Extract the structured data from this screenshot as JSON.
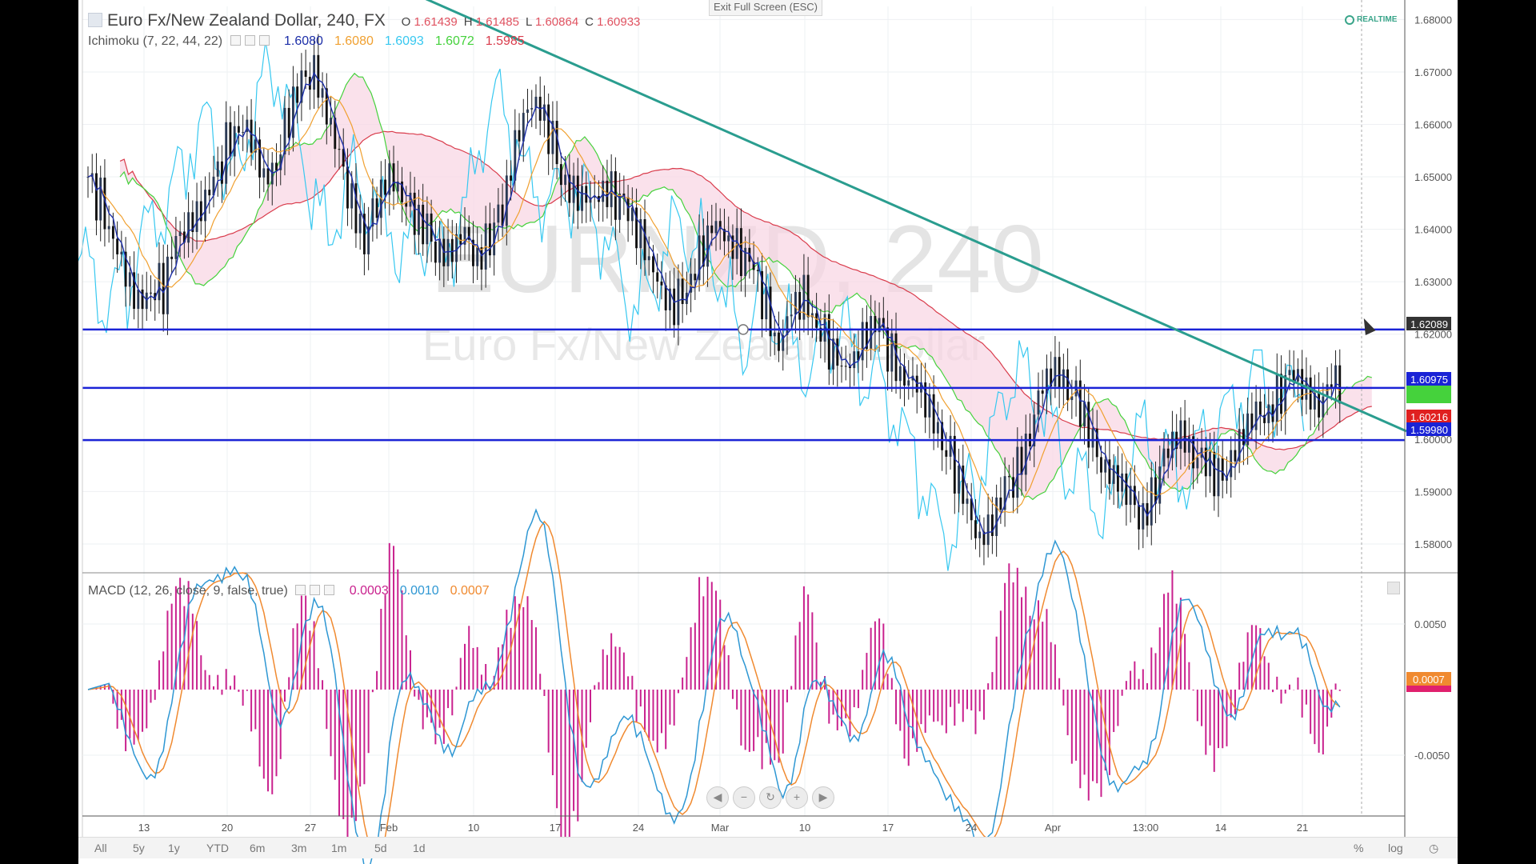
{
  "app": {
    "exit_fullscreen_label": "Exit Full Screen (ESC)",
    "realtime_label": "REALTIME",
    "symbol_line": "Euro Fx/New Zealand Dollar, 240, FX",
    "watermark_symbol": "EURNZD, 240",
    "watermark_name": "Euro Fx/New Zealand Dollar"
  },
  "ohlc": [
    {
      "k": "O",
      "v": "1.61439"
    },
    {
      "k": "H",
      "v": "1.61485"
    },
    {
      "k": "L",
      "v": "1.60864"
    },
    {
      "k": "C",
      "v": "1.60933"
    }
  ],
  "ichimoku": {
    "label": "Ichimoku (7, 22, 44, 22)",
    "values": [
      {
        "v": "1.6080",
        "color": "#1c2ea8"
      },
      {
        "v": "1.6080",
        "color": "#f0a030"
      },
      {
        "v": "1.6093",
        "color": "#37c8f0"
      },
      {
        "v": "1.6072",
        "color": "#45d23c"
      },
      {
        "v": "1.5985",
        "color": "#d93b4b"
      }
    ]
  },
  "macd": {
    "label": "MACD (12, 26, close, 9, false, true)",
    "values": [
      {
        "v": "0.0003",
        "color": "#c9218e"
      },
      {
        "v": "0.0010",
        "color": "#2e97d3"
      },
      {
        "v": "0.0007",
        "color": "#f08a30"
      }
    ]
  },
  "range_buttons": [
    "All",
    "5y",
    "1y",
    "YTD",
    "6m",
    "3m",
    "1m",
    "5d",
    "1d"
  ],
  "right_controls": [
    "%",
    "log"
  ],
  "nav_buttons": [
    {
      "name": "scroll-left",
      "icon": "chevron-left-icon",
      "glyph": "◀"
    },
    {
      "name": "zoom-out",
      "icon": "minus-icon",
      "glyph": "−"
    },
    {
      "name": "reset",
      "icon": "reset-icon",
      "glyph": "↻"
    },
    {
      "name": "zoom-in",
      "icon": "plus-icon",
      "glyph": "+"
    },
    {
      "name": "scroll-right",
      "icon": "chevron-right-icon",
      "glyph": "▶"
    }
  ],
  "chart_data": {
    "type": "candlestick",
    "price_axis": {
      "ticks": [
        "1.68000",
        "1.67000",
        "1.66000",
        "1.65000",
        "1.64000",
        "1.63000",
        "1.62000",
        "1.60000",
        "1.59000",
        "1.58000"
      ],
      "range": [
        1.5745,
        1.6825
      ]
    },
    "time_axis": {
      "labels": [
        "13",
        "20",
        "27",
        "Feb",
        "10",
        "17",
        "24",
        "Mar",
        "10",
        "17",
        "24",
        "Apr",
        "13:00",
        "14",
        "21"
      ]
    },
    "price_labels": [
      {
        "v": "1.62089",
        "bg": "#333333"
      },
      {
        "v": "1.60975",
        "bg": "#1a23d6"
      },
      {
        "v": "1.60216",
        "bg": "#e02020"
      },
      {
        "v": "1.59980",
        "bg": "#1a23d6"
      }
    ],
    "horizontal_lines": [
      1.62089,
      1.60975,
      1.5998
    ],
    "trendline": {
      "start": {
        "time": "Jan 31",
        "price": 1.6865
      },
      "end": {
        "time": "Apr 25",
        "price": 1.6015
      }
    },
    "series_colors": {
      "conversion": "#1c2ea8",
      "base": "#f0a030",
      "lagging": "#37c8f0",
      "lead_a": "#45d23c",
      "lead_b": "#d93b4b",
      "cloud": "#f8d4e2",
      "up": "#2b3a55",
      "down": "#111111",
      "trendline": "#2a9d8f",
      "support": "#1a23d6"
    },
    "candles_approx": [
      1.648,
      1.645,
      1.64,
      1.632,
      1.627,
      1.63,
      1.628,
      1.636,
      1.64,
      1.643,
      1.648,
      1.657,
      1.662,
      1.658,
      1.65,
      1.653,
      1.66,
      1.666,
      1.67,
      1.662,
      1.654,
      1.647,
      1.64,
      1.645,
      1.65,
      1.646,
      1.64,
      1.638,
      1.636,
      1.637,
      1.64,
      1.636,
      1.64,
      1.642,
      1.655,
      1.663,
      1.661,
      1.656,
      1.65,
      1.648,
      1.646,
      1.649,
      1.646,
      1.641,
      1.637,
      1.632,
      1.625,
      1.627,
      1.633,
      1.638,
      1.641,
      1.638,
      1.634,
      1.63,
      1.624,
      1.618,
      1.625,
      1.629,
      1.624,
      1.618,
      1.612,
      1.615,
      1.619,
      1.62,
      1.616,
      1.613,
      1.611,
      1.607,
      1.601,
      1.593,
      1.585,
      1.58,
      1.583,
      1.59,
      1.596,
      1.603,
      1.611,
      1.614,
      1.61,
      1.604,
      1.597,
      1.594,
      1.592,
      1.589,
      1.587,
      1.593,
      1.598,
      1.601,
      1.596,
      1.593,
      1.591,
      1.597,
      1.602,
      1.606,
      1.607,
      1.61,
      1.611,
      1.608,
      1.605,
      1.609,
      1.612
    ],
    "macd_ticks": [
      "0.0050",
      "-0.0050"
    ],
    "macd_labels": [
      {
        "v": "0.0007",
        "bg": "#f08a30"
      }
    ]
  }
}
